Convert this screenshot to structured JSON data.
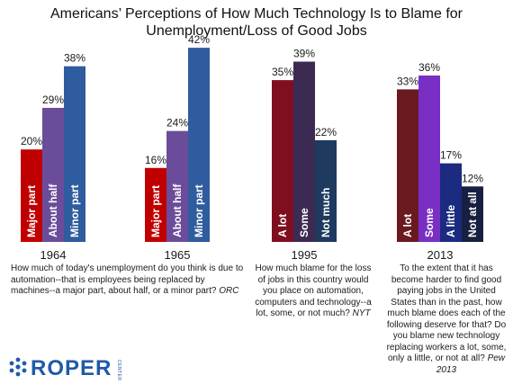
{
  "chart_data": {
    "type": "bar",
    "title_line1": "Americans’ Perceptions of How Much Technology Is to Blame for",
    "title_line2": "Unemployment/Loss of Good Jobs",
    "groups": [
      {
        "year": "1964",
        "bars": [
          {
            "label": "Major part",
            "value": 20,
            "value_label": "20%",
            "color": "#c00000"
          },
          {
            "label": "About half",
            "value": 29,
            "value_label": "29%",
            "color": "#6b4c9a"
          },
          {
            "label": "Minor part",
            "value": 38,
            "value_label": "38%",
            "color": "#2e5c9e"
          }
        ]
      },
      {
        "year": "1965",
        "bars": [
          {
            "label": "Major part",
            "value": 16,
            "value_label": "16%",
            "color": "#c00000"
          },
          {
            "label": "About half",
            "value": 24,
            "value_label": "24%",
            "color": "#6b4c9a"
          },
          {
            "label": "Minor part",
            "value": 42,
            "value_label": "42%",
            "color": "#2e5c9e"
          }
        ]
      },
      {
        "year": "1995",
        "bars": [
          {
            "label": "A lot",
            "value": 35,
            "value_label": "35%",
            "color": "#7f0f1f"
          },
          {
            "label": "Some",
            "value": 39,
            "value_label": "39%",
            "color": "#3d2a52"
          },
          {
            "label": "Not much",
            "value": 22,
            "value_label": "22%",
            "color": "#1e3a5f"
          }
        ]
      },
      {
        "year": "2013",
        "bars": [
          {
            "label": "A lot",
            "value": 33,
            "value_label": "33%",
            "color": "#6a1a1f"
          },
          {
            "label": "Some",
            "value": 36,
            "value_label": "36%",
            "color": "#7a2fc4"
          },
          {
            "label": "A little",
            "value": 17,
            "value_label": "17%",
            "color": "#1a2b80"
          },
          {
            "label": "Not at all",
            "value": 12,
            "value_label": "12%",
            "color": "#172040"
          }
        ]
      }
    ],
    "ylim": [
      0,
      45
    ],
    "grid": false,
    "legend": "none"
  },
  "questions": {
    "q1_text": "How much of today's unemployment do you think is due to automation--that is employees being replaced by machines--a major part, about half, or a minor part?",
    "q1_source": "ORC",
    "q2_text": "How much blame for the loss of jobs in this country would you place on automation, computers and technology--a lot, some, or not much?",
    "q2_source": "NYT",
    "q3_text": "To the extent that it has become harder to find good paying jobs in the United States than in the past, how much blame does each of the following deserve for that? Do you blame new technology replacing workers a lot, some, only a little, or not at all?",
    "q3_source": "Pew 2013"
  },
  "logo": {
    "name": "ROPER",
    "sub": "CENTER",
    "color": "#1f5aa8"
  }
}
